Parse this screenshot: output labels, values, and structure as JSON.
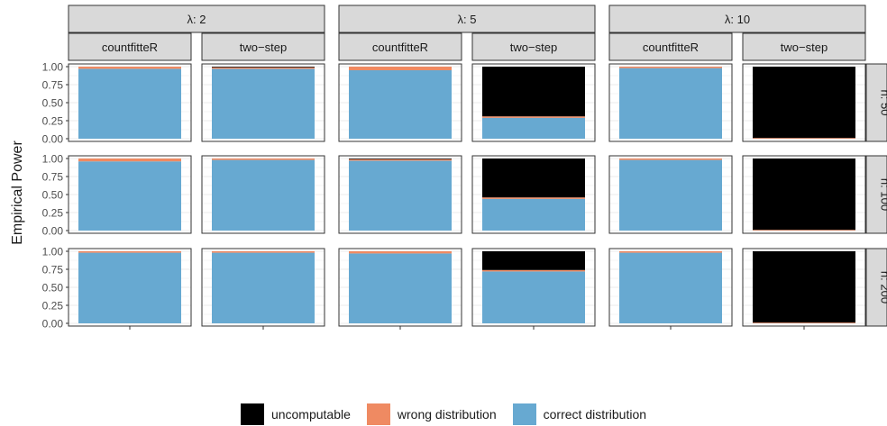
{
  "chart_data": {
    "type": "bar",
    "ylabel": "Empirical Power",
    "ylim": [
      0,
      1
    ],
    "yticks": [
      "0.00",
      "0.25",
      "0.50",
      "0.75",
      "1.00"
    ],
    "column_facets": [
      "λ: 2",
      "λ: 5",
      "λ: 10"
    ],
    "method_facets": [
      "countfitteR",
      "two−step"
    ],
    "row_facets": [
      "n: 50",
      "n: 100",
      "n: 200"
    ],
    "series": [
      {
        "name": "correct distribution",
        "color": "#67a9d1"
      },
      {
        "name": "wrong distribution",
        "color": "#ef8a62"
      },
      {
        "name": "uncomputable",
        "color": "#000000"
      }
    ],
    "legend_order": [
      "uncomputable",
      "wrong distribution",
      "correct distribution"
    ],
    "panels": [
      {
        "row": "n: 50",
        "lambda": "λ: 2",
        "method": "countfitteR",
        "correct": 0.97,
        "wrong": 0.03,
        "uncomputable": 0.0
      },
      {
        "row": "n: 50",
        "lambda": "λ: 2",
        "method": "two−step",
        "correct": 0.97,
        "wrong": 0.02,
        "uncomputable": 0.01
      },
      {
        "row": "n: 50",
        "lambda": "λ: 5",
        "method": "countfitteR",
        "correct": 0.95,
        "wrong": 0.05,
        "uncomputable": 0.0
      },
      {
        "row": "n: 50",
        "lambda": "λ: 5",
        "method": "two−step",
        "correct": 0.29,
        "wrong": 0.02,
        "uncomputable": 0.69
      },
      {
        "row": "n: 50",
        "lambda": "λ: 10",
        "method": "countfitteR",
        "correct": 0.98,
        "wrong": 0.02,
        "uncomputable": 0.0
      },
      {
        "row": "n: 50",
        "lambda": "λ: 10",
        "method": "two−step",
        "correct": 0.0,
        "wrong": 0.01,
        "uncomputable": 0.99
      },
      {
        "row": "n: 100",
        "lambda": "λ: 2",
        "method": "countfitteR",
        "correct": 0.96,
        "wrong": 0.04,
        "uncomputable": 0.0
      },
      {
        "row": "n: 100",
        "lambda": "λ: 2",
        "method": "two−step",
        "correct": 0.98,
        "wrong": 0.02,
        "uncomputable": 0.0
      },
      {
        "row": "n: 100",
        "lambda": "λ: 5",
        "method": "countfitteR",
        "correct": 0.97,
        "wrong": 0.02,
        "uncomputable": 0.01
      },
      {
        "row": "n: 100",
        "lambda": "λ: 5",
        "method": "two−step",
        "correct": 0.44,
        "wrong": 0.02,
        "uncomputable": 0.54
      },
      {
        "row": "n: 100",
        "lambda": "λ: 10",
        "method": "countfitteR",
        "correct": 0.98,
        "wrong": 0.02,
        "uncomputable": 0.0
      },
      {
        "row": "n: 100",
        "lambda": "λ: 10",
        "method": "two−step",
        "correct": 0.0,
        "wrong": 0.01,
        "uncomputable": 0.99
      },
      {
        "row": "n: 200",
        "lambda": "λ: 2",
        "method": "countfitteR",
        "correct": 0.98,
        "wrong": 0.02,
        "uncomputable": 0.0
      },
      {
        "row": "n: 200",
        "lambda": "λ: 2",
        "method": "two−step",
        "correct": 0.98,
        "wrong": 0.02,
        "uncomputable": 0.0
      },
      {
        "row": "n: 200",
        "lambda": "λ: 5",
        "method": "countfitteR",
        "correct": 0.97,
        "wrong": 0.03,
        "uncomputable": 0.0
      },
      {
        "row": "n: 200",
        "lambda": "λ: 5",
        "method": "two−step",
        "correct": 0.72,
        "wrong": 0.02,
        "uncomputable": 0.26
      },
      {
        "row": "n: 200",
        "lambda": "λ: 10",
        "method": "countfitteR",
        "correct": 0.98,
        "wrong": 0.02,
        "uncomputable": 0.0
      },
      {
        "row": "n: 200",
        "lambda": "λ: 10",
        "method": "two−step",
        "correct": 0.0,
        "wrong": 0.01,
        "uncomputable": 0.99
      }
    ]
  }
}
